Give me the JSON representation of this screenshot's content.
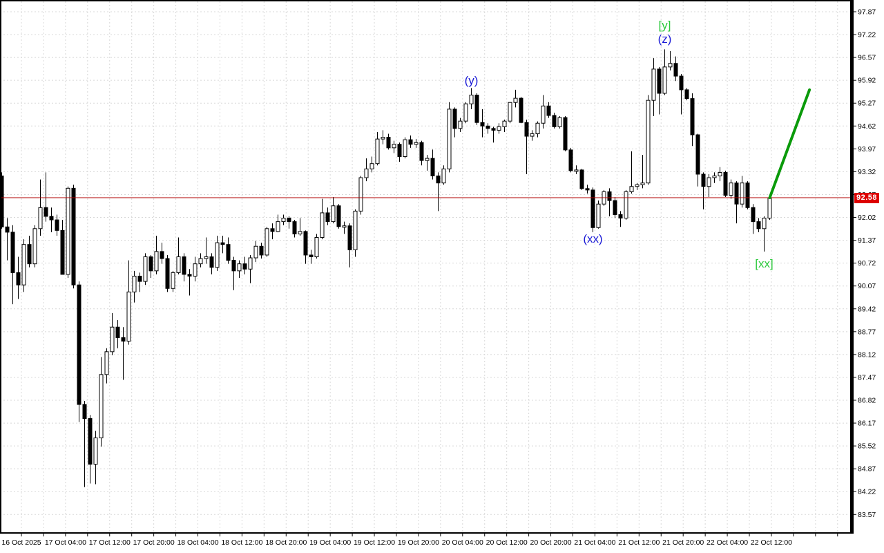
{
  "window": {
    "background": "#ffffff"
  },
  "chart_data": {
    "type": "candlestick",
    "timeframe_note": "1-hour candles, 16-22 Oct 2025",
    "y_axis": {
      "min": 83.57,
      "max": 97.87,
      "tick_step": 0.65,
      "ticks": [
        "97.87",
        "97.22",
        "96.57",
        "95.92",
        "95.27",
        "94.62",
        "93.97",
        "93.32",
        "92.67",
        "92.02",
        "91.37",
        "90.72",
        "90.07",
        "89.42",
        "88.77",
        "88.12",
        "87.47",
        "86.82",
        "86.17",
        "85.52",
        "84.87",
        "84.22",
        "83.57"
      ]
    },
    "x_axis": {
      "labels": [
        "16 Oct 2025",
        "17 Oct 04:00",
        "17 Oct 12:00",
        "17 Oct 20:00",
        "18 Oct 04:00",
        "18 Oct 12:00",
        "18 Oct 20:00",
        "19 Oct 04:00",
        "19 Oct 12:00",
        "19 Oct 20:00",
        "20 Oct 04:00",
        "20 Oct 12:00",
        "20 Oct 20:00",
        "21 Oct 04:00",
        "21 Oct 12:00",
        "21 Oct 20:00",
        "22 Oct 04:00",
        "22 Oct 12:00"
      ]
    },
    "grid": {
      "on": true,
      "color": "#d8d8d8"
    },
    "colors": {
      "bull_fill": "#ffffff",
      "bear_fill": "#000000",
      "outline": "#000000",
      "axis": "#000000",
      "blue_label": "#1a1ad6",
      "green_label": "#2bc93b",
      "trendline": "#0a9a0a",
      "price_line": "#b00000",
      "price_tag_bg": "#dd0000",
      "price_tag_text": "#ffffff"
    },
    "current_price": {
      "label": "92.58",
      "value": 92.58
    },
    "candles": [
      [
        93.2,
        93.3,
        91.7,
        91.75
      ],
      [
        91.75,
        92.0,
        90.8,
        91.6
      ],
      [
        91.6,
        91.8,
        89.55,
        90.45
      ],
      [
        90.45,
        90.9,
        89.7,
        90.1
      ],
      [
        90.1,
        91.4,
        89.9,
        91.25
      ],
      [
        91.25,
        91.5,
        90.6,
        90.7
      ],
      [
        90.7,
        91.8,
        90.6,
        91.7
      ],
      [
        91.7,
        93.1,
        91.5,
        92.3
      ],
      [
        92.3,
        93.3,
        91.9,
        92.05
      ],
      [
        92.05,
        92.3,
        91.6,
        91.95
      ],
      [
        91.95,
        92.1,
        91.5,
        91.65
      ],
      [
        91.65,
        91.95,
        90.8,
        90.4
      ],
      [
        90.4,
        92.9,
        90.3,
        92.85
      ],
      [
        92.85,
        92.95,
        90.0,
        90.1
      ],
      [
        90.1,
        90.2,
        86.2,
        86.7
      ],
      [
        86.7,
        86.8,
        84.35,
        86.3
      ],
      [
        86.3,
        86.4,
        84.45,
        85.0
      ],
      [
        85.0,
        85.95,
        84.43,
        85.75
      ],
      [
        85.75,
        88.05,
        85.5,
        87.55
      ],
      [
        87.55,
        88.3,
        87.3,
        88.2
      ],
      [
        88.2,
        89.3,
        88.1,
        88.9
      ],
      [
        88.9,
        89.1,
        88.3,
        88.6
      ],
      [
        88.6,
        88.9,
        87.4,
        88.5
      ],
      [
        88.5,
        90.8,
        88.4,
        89.9
      ],
      [
        89.9,
        90.5,
        89.6,
        90.35
      ],
      [
        90.35,
        90.45,
        89.9,
        90.2
      ],
      [
        90.2,
        91.0,
        90.1,
        90.9
      ],
      [
        90.9,
        90.95,
        90.3,
        90.5
      ],
      [
        90.5,
        91.5,
        90.4,
        91.05
      ],
      [
        91.05,
        91.3,
        90.7,
        90.85
      ],
      [
        90.85,
        90.95,
        89.9,
        90.0
      ],
      [
        90.0,
        90.5,
        89.9,
        90.45
      ],
      [
        90.45,
        91.45,
        90.4,
        90.9
      ],
      [
        90.9,
        91.0,
        90.2,
        90.4
      ],
      [
        90.4,
        90.55,
        89.8,
        90.35
      ],
      [
        90.35,
        90.9,
        90.2,
        90.7
      ],
      [
        90.7,
        91.0,
        90.6,
        90.85
      ],
      [
        90.85,
        91.45,
        90.7,
        90.9
      ],
      [
        90.9,
        91.0,
        90.4,
        90.6
      ],
      [
        90.6,
        91.5,
        90.5,
        91.3
      ],
      [
        91.3,
        91.5,
        91.0,
        91.25
      ],
      [
        91.25,
        91.45,
        90.7,
        90.8
      ],
      [
        90.8,
        90.9,
        89.95,
        90.5
      ],
      [
        90.5,
        90.8,
        90.3,
        90.7
      ],
      [
        90.7,
        90.9,
        90.4,
        90.55
      ],
      [
        90.55,
        90.95,
        90.15,
        90.87
      ],
      [
        90.87,
        91.35,
        90.75,
        91.2
      ],
      [
        91.2,
        91.3,
        90.85,
        90.95
      ],
      [
        90.95,
        91.75,
        90.9,
        91.7
      ],
      [
        91.7,
        91.85,
        91.4,
        91.62
      ],
      [
        91.62,
        92.1,
        91.6,
        91.9
      ],
      [
        91.9,
        92.1,
        91.8,
        92.0
      ],
      [
        92.0,
        92.05,
        91.7,
        91.9
      ],
      [
        91.9,
        91.95,
        91.45,
        91.55
      ],
      [
        91.55,
        92.0,
        91.5,
        91.62
      ],
      [
        91.62,
        91.65,
        90.7,
        90.95
      ],
      [
        90.95,
        91.1,
        90.7,
        90.9
      ],
      [
        90.9,
        91.55,
        90.85,
        91.45
      ],
      [
        91.45,
        92.55,
        91.4,
        92.15
      ],
      [
        92.15,
        92.3,
        91.8,
        91.9
      ],
      [
        91.9,
        92.6,
        91.85,
        92.35
      ],
      [
        92.35,
        92.4,
        91.7,
        91.76
      ],
      [
        91.76,
        91.9,
        91.55,
        91.78
      ],
      [
        91.78,
        91.85,
        90.6,
        91.1
      ],
      [
        91.1,
        92.25,
        90.9,
        92.2
      ],
      [
        92.2,
        93.2,
        92.1,
        93.15
      ],
      [
        93.15,
        93.7,
        93.05,
        93.4
      ],
      [
        93.4,
        93.75,
        93.3,
        93.55
      ],
      [
        93.55,
        94.45,
        93.5,
        94.25
      ],
      [
        94.25,
        94.5,
        94.1,
        94.3
      ],
      [
        94.3,
        94.4,
        93.95,
        94.0
      ],
      [
        94.0,
        94.2,
        93.85,
        94.1
      ],
      [
        94.1,
        94.15,
        93.6,
        93.75
      ],
      [
        93.75,
        94.3,
        93.7,
        94.23
      ],
      [
        94.23,
        94.35,
        94.0,
        94.1
      ],
      [
        94.1,
        94.25,
        94.0,
        94.15
      ],
      [
        94.15,
        94.2,
        93.5,
        93.64
      ],
      [
        93.64,
        93.8,
        93.35,
        93.7
      ],
      [
        93.7,
        93.95,
        93.1,
        93.2
      ],
      [
        93.2,
        93.3,
        92.2,
        93.0
      ],
      [
        93.0,
        93.5,
        92.95,
        93.4
      ],
      [
        93.4,
        95.3,
        93.3,
        95.1
      ],
      [
        95.1,
        95.15,
        94.3,
        94.55
      ],
      [
        94.55,
        94.85,
        94.45,
        94.76
      ],
      [
        94.76,
        95.3,
        94.7,
        95.25
      ],
      [
        95.25,
        95.7,
        95.1,
        95.5
      ],
      [
        95.5,
        95.55,
        94.65,
        94.72
      ],
      [
        94.72,
        95.1,
        94.3,
        94.62
      ],
      [
        94.62,
        94.7,
        94.4,
        94.55
      ],
      [
        94.55,
        94.6,
        94.15,
        94.5
      ],
      [
        94.5,
        94.7,
        94.4,
        94.6
      ],
      [
        94.6,
        94.8,
        94.45,
        94.76
      ],
      [
        94.76,
        95.3,
        94.7,
        95.29
      ],
      [
        95.29,
        95.65,
        95.15,
        95.41
      ],
      [
        95.41,
        95.45,
        94.7,
        94.72
      ],
      [
        94.72,
        94.8,
        93.25,
        94.33
      ],
      [
        94.33,
        94.5,
        94.2,
        94.4
      ],
      [
        94.4,
        94.75,
        94.3,
        94.7
      ],
      [
        94.7,
        95.5,
        94.55,
        95.19
      ],
      [
        95.19,
        95.3,
        94.85,
        94.92
      ],
      [
        94.92,
        95.0,
        94.55,
        94.6
      ],
      [
        94.6,
        94.9,
        94.55,
        94.86
      ],
      [
        94.86,
        94.9,
        93.9,
        93.94
      ],
      [
        93.94,
        94.0,
        93.3,
        93.35
      ],
      [
        93.35,
        93.5,
        93.25,
        93.37
      ],
      [
        93.37,
        93.4,
        92.8,
        92.84
      ],
      [
        92.84,
        92.95,
        92.7,
        92.8
      ],
      [
        92.8,
        92.87,
        91.6,
        91.73
      ],
      [
        91.73,
        92.5,
        91.7,
        92.4
      ],
      [
        92.4,
        92.8,
        92.35,
        92.75
      ],
      [
        92.75,
        92.85,
        92.05,
        92.5
      ],
      [
        92.5,
        92.6,
        92.0,
        92.1
      ],
      [
        92.1,
        92.2,
        91.75,
        92.0
      ],
      [
        92.0,
        92.8,
        91.95,
        92.75
      ],
      [
        92.75,
        93.9,
        92.7,
        92.9
      ],
      [
        92.9,
        93.0,
        92.8,
        92.95
      ],
      [
        92.95,
        93.8,
        92.85,
        93.0
      ],
      [
        93.0,
        95.5,
        92.95,
        95.35
      ],
      [
        95.35,
        96.55,
        94.9,
        96.24
      ],
      [
        96.24,
        96.3,
        94.95,
        95.55
      ],
      [
        95.55,
        96.8,
        95.5,
        96.3
      ],
      [
        96.3,
        96.75,
        96.2,
        96.4
      ],
      [
        96.4,
        96.6,
        95.9,
        96.04
      ],
      [
        96.04,
        96.1,
        94.95,
        95.65
      ],
      [
        95.65,
        95.7,
        95.35,
        95.4
      ],
      [
        95.4,
        95.55,
        94.05,
        94.37
      ],
      [
        94.37,
        94.4,
        92.9,
        93.25
      ],
      [
        93.25,
        93.3,
        92.25,
        92.9
      ],
      [
        92.9,
        93.25,
        92.6,
        93.15
      ],
      [
        93.15,
        93.3,
        93.0,
        93.2
      ],
      [
        93.2,
        93.45,
        93.05,
        93.3
      ],
      [
        93.3,
        93.35,
        92.6,
        92.65
      ],
      [
        92.65,
        93.1,
        92.55,
        93.0
      ],
      [
        93.0,
        93.05,
        91.85,
        92.4
      ],
      [
        92.4,
        93.2,
        92.3,
        93.0
      ],
      [
        93.0,
        93.05,
        92.25,
        92.3
      ],
      [
        92.3,
        92.4,
        91.55,
        91.9
      ],
      [
        91.9,
        92.0,
        91.6,
        91.7
      ],
      [
        91.7,
        92.05,
        91.05,
        92.0
      ],
      [
        92.0,
        92.65,
        91.95,
        92.58
      ]
    ],
    "annotations": [
      {
        "text": "(y)",
        "color_key": "blue_label",
        "index": 85,
        "price": 95.9
      },
      {
        "text": "[y]",
        "color_key": "green_label",
        "index": 120,
        "price": 97.48
      },
      {
        "text": "(z)",
        "color_key": "blue_label",
        "index": 120,
        "price": 97.08
      },
      {
        "text": "(xx)",
        "color_key": "blue_label",
        "index": 107,
        "price": 91.4
      },
      {
        "text": "[xx]",
        "color_key": "green_label",
        "index": 138,
        "price": 90.69
      }
    ],
    "projection_line": {
      "from_index": 139,
      "from_price": 92.58,
      "to_index": 146.2,
      "to_price": 95.65,
      "width": 4
    }
  }
}
